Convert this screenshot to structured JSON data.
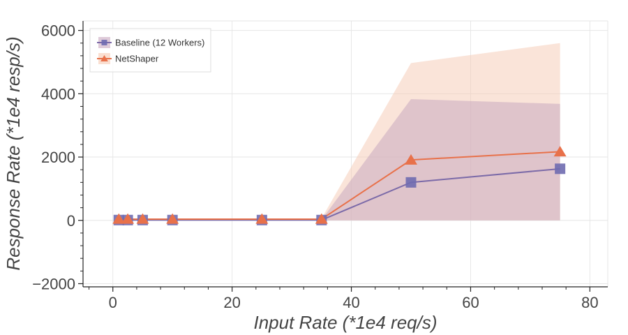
{
  "chart_data": {
    "type": "line",
    "xlabel": "Input Rate (*1e4 req/s)",
    "ylabel": "Response Rate (*1e4 resp/s)",
    "xlim": [
      -5,
      83
    ],
    "ylim": [
      -2100,
      6300
    ],
    "xticks": [
      0,
      20,
      40,
      60,
      80
    ],
    "xtick_labels": [
      "0",
      "20",
      "40",
      "60",
      "80"
    ],
    "yticks": [
      -2000,
      0,
      2000,
      4000,
      6000
    ],
    "ytick_labels": [
      "−2000",
      "0",
      "2000",
      "4000",
      "6000"
    ],
    "grid": true,
    "legend_position": "top-left",
    "series": [
      {
        "name": "Baseline (12 Workers)",
        "marker": "square",
        "color": "#7b6aa8",
        "marker_color": "#6f6bb0",
        "band_color": "#c9a9bf",
        "x": [
          1,
          2.5,
          5,
          10,
          25,
          35,
          50,
          75
        ],
        "values": [
          10,
          10,
          10,
          10,
          10,
          10,
          1200,
          1630
        ],
        "band_lower": [
          0,
          0,
          0,
          0,
          0,
          0,
          0,
          0
        ],
        "band_upper": [
          20,
          20,
          20,
          20,
          20,
          20,
          3830,
          3680
        ]
      },
      {
        "name": "NetShaper",
        "marker": "triangle",
        "color": "#e8714a",
        "marker_color": "#e8714a",
        "band_color": "#f6c9b3",
        "x": [
          1,
          2.5,
          5,
          10,
          25,
          35,
          50,
          75
        ],
        "values": [
          40,
          40,
          40,
          40,
          40,
          40,
          1910,
          2170
        ],
        "band_lower": [
          0,
          0,
          0,
          0,
          0,
          0,
          0,
          0
        ],
        "band_upper": [
          60,
          60,
          60,
          60,
          60,
          60,
          4970,
          5600
        ]
      }
    ]
  }
}
